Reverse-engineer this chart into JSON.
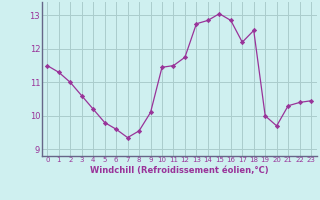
{
  "x": [
    0,
    1,
    2,
    3,
    4,
    5,
    6,
    7,
    8,
    9,
    10,
    11,
    12,
    13,
    14,
    15,
    16,
    17,
    18,
    19,
    20,
    21,
    22,
    23
  ],
  "y": [
    11.5,
    11.3,
    11.0,
    10.6,
    10.2,
    9.8,
    9.6,
    9.35,
    9.55,
    10.1,
    11.45,
    11.5,
    11.75,
    12.75,
    12.85,
    13.05,
    12.85,
    12.2,
    12.55,
    10.0,
    9.7,
    10.3,
    10.4,
    10.45
  ],
  "line_color": "#993399",
  "marker": "D",
  "marker_size": 2.2,
  "bg_color": "#cff0f0",
  "grid_color": "#aacccc",
  "tick_color": "#993399",
  "xlabel": "Windchill (Refroidissement éolien,°C)",
  "ylim": [
    8.8,
    13.4
  ],
  "xlim": [
    -0.5,
    23.5
  ],
  "yticks": [
    9,
    10,
    11,
    12,
    13
  ],
  "xticks": [
    0,
    1,
    2,
    3,
    4,
    5,
    6,
    7,
    8,
    9,
    10,
    11,
    12,
    13,
    14,
    15,
    16,
    17,
    18,
    19,
    20,
    21,
    22,
    23
  ]
}
